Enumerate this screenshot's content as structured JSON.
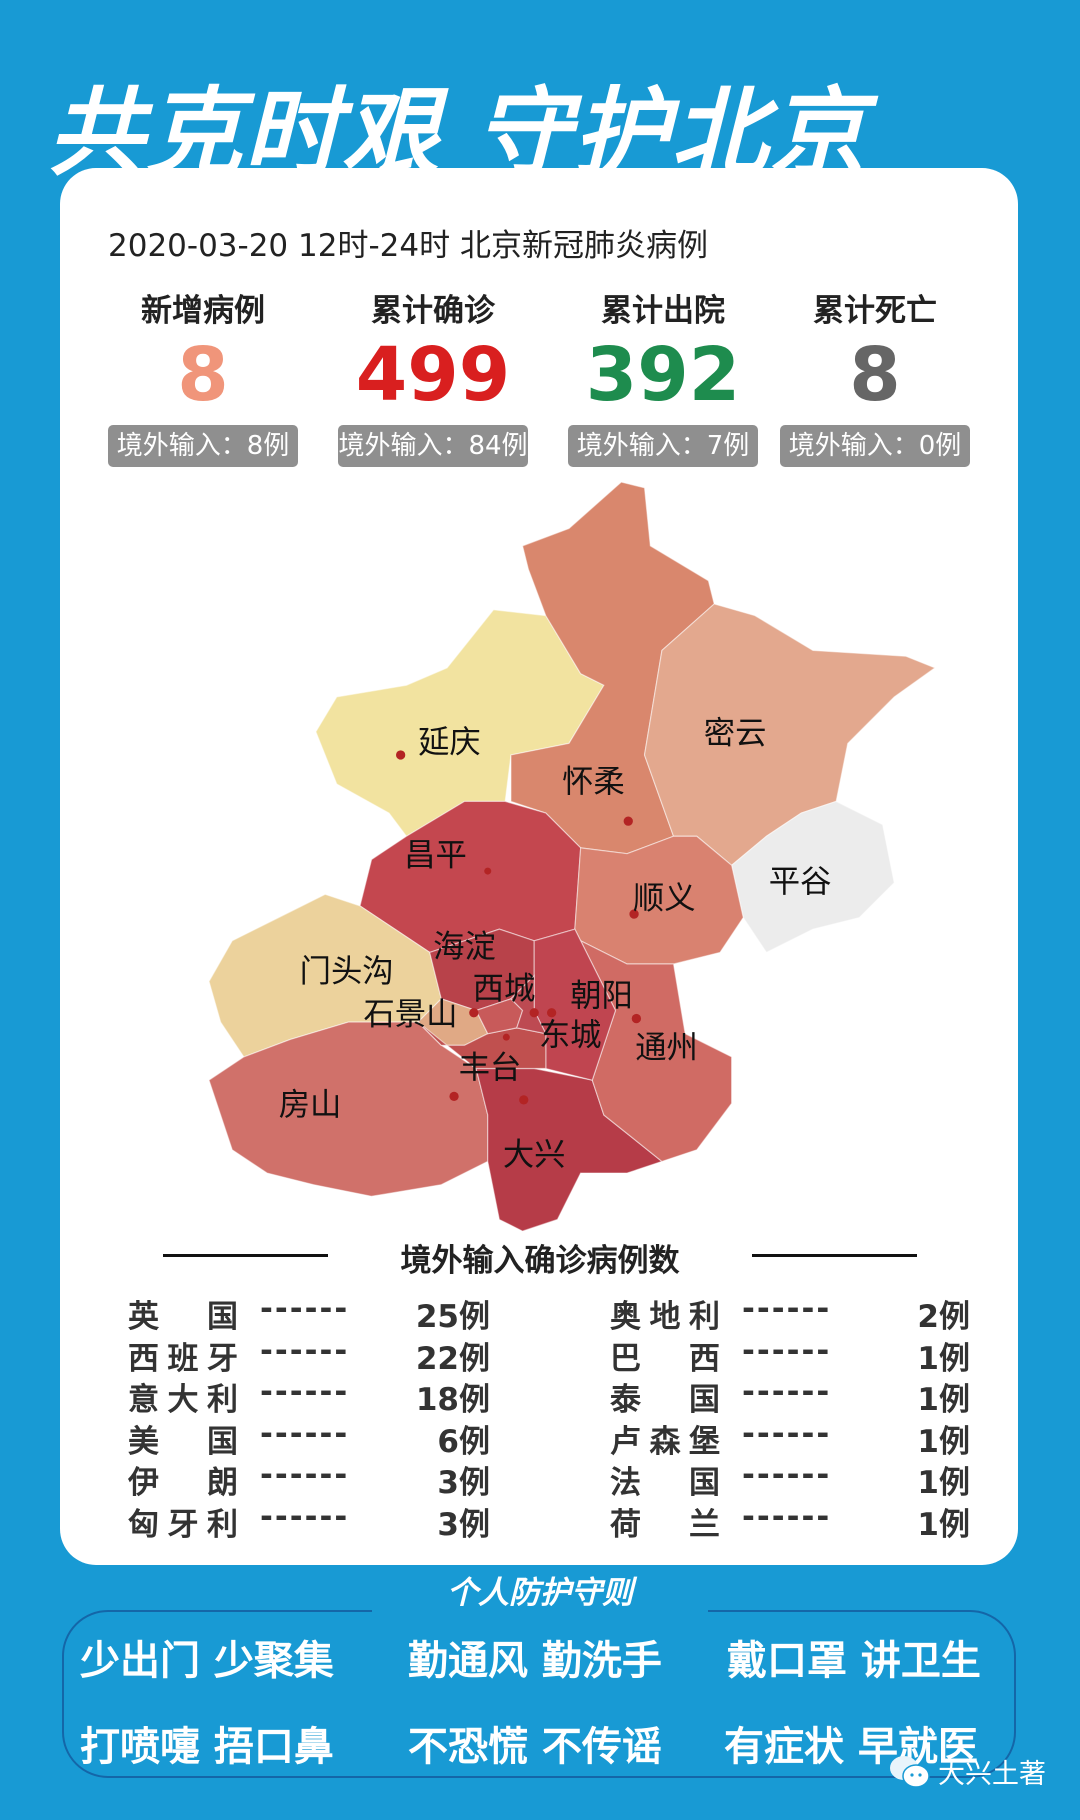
{
  "header": {
    "title": "共克时艰 守护北京"
  },
  "report": {
    "date_line": "2020-03-20 12时-24时  北京新冠肺炎病例"
  },
  "stats": [
    {
      "label": "新增病例",
      "value": "8",
      "sub": "境外输入：8例",
      "color": "#f0957a"
    },
    {
      "label": "累计确诊",
      "value": "499",
      "sub": "境外输入：84例",
      "color": "#d91f1f"
    },
    {
      "label": "累计出院",
      "value": "392",
      "sub": "境外输入：7例",
      "color": "#1e8c4e"
    },
    {
      "label": "累计死亡",
      "value": "8",
      "sub": "境外输入：0例",
      "color": "#666666"
    }
  ],
  "map": {
    "districts": [
      {
        "name": "延庆",
        "color": "#f2e3a0"
      },
      {
        "name": "怀柔",
        "color": "#d9876d"
      },
      {
        "name": "密云",
        "color": "#e3a88e"
      },
      {
        "name": "平谷",
        "color": "#ececec"
      },
      {
        "name": "昌平",
        "color": "#c4474f"
      },
      {
        "name": "顺义",
        "color": "#d98270"
      },
      {
        "name": "门头沟",
        "color": "#ecd29c"
      },
      {
        "name": "房山",
        "color": "#d0716a"
      },
      {
        "name": "大兴",
        "color": "#b63c48"
      },
      {
        "name": "通州",
        "color": "#d06b64"
      },
      {
        "name": "海淀",
        "color": "#b8424a"
      },
      {
        "name": "朝阳",
        "color": "#c04550"
      },
      {
        "name": "石景山",
        "color": "#e0a985"
      },
      {
        "name": "丰台",
        "color": "#c0504f"
      },
      {
        "name": "西城",
        "color": "#c85a5a"
      },
      {
        "name": "东城",
        "color": "#bd4a52"
      }
    ]
  },
  "imported": {
    "title": "境外输入确诊病例数",
    "dashes": "------",
    "left": [
      {
        "country": "英国",
        "count": "25例"
      },
      {
        "country": "西班牙",
        "count": "22例"
      },
      {
        "country": "意大利",
        "count": "18例"
      },
      {
        "country": "美国",
        "count": "6例"
      },
      {
        "country": "伊朗",
        "count": "3例"
      },
      {
        "country": "匈牙利",
        "count": "3例"
      }
    ],
    "right": [
      {
        "country": "奥地利",
        "count": "2例"
      },
      {
        "country": "巴西",
        "count": "1例"
      },
      {
        "country": "泰国",
        "count": "1例"
      },
      {
        "country": "卢森堡",
        "count": "1例"
      },
      {
        "country": "法国",
        "count": "1例"
      },
      {
        "country": "荷兰",
        "count": "1例"
      }
    ]
  },
  "rules": {
    "title": "个人防护守则",
    "items": [
      "少出门 少聚集",
      "勤通风 勤洗手",
      "戴口罩 讲卫生",
      "打喷嚏 捂口鼻",
      "不恐慌 不传谣",
      "有症状 早就医"
    ]
  },
  "watermark": {
    "icon": "wechat-icon",
    "text": "大兴土著"
  }
}
